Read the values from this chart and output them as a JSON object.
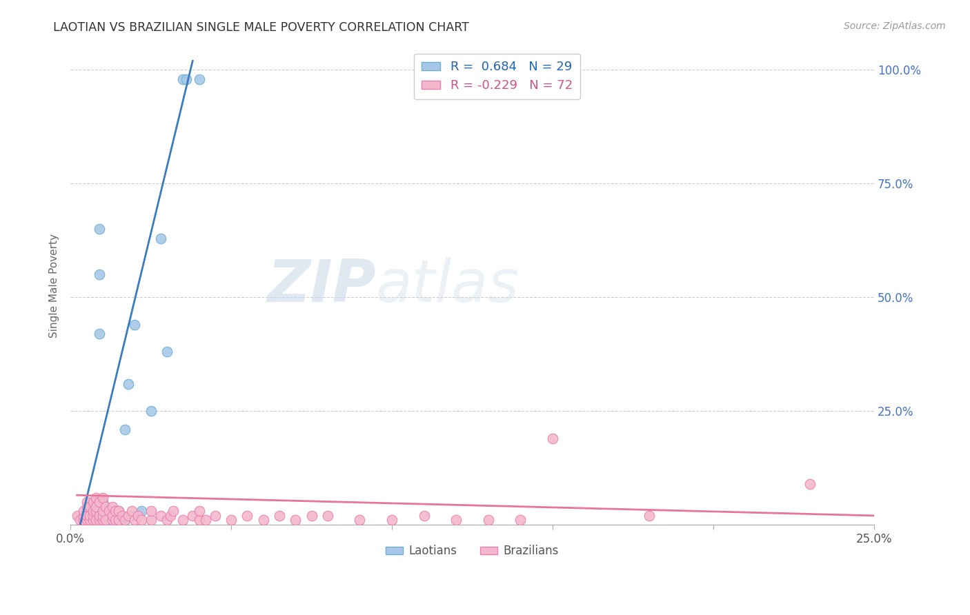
{
  "title": "LAOTIAN VS BRAZILIAN SINGLE MALE POVERTY CORRELATION CHART",
  "source": "Source: ZipAtlas.com",
  "ylabel": "Single Male Poverty",
  "right_yticks": [
    "100.0%",
    "75.0%",
    "50.0%",
    "25.0%"
  ],
  "right_ytick_vals": [
    1.0,
    0.75,
    0.5,
    0.25
  ],
  "xlim": [
    0.0,
    0.25
  ],
  "ylim": [
    0.0,
    1.05
  ],
  "laotian_color": "#a8c8e8",
  "laotian_edge": "#6baed6",
  "brazilian_color": "#f4b8cc",
  "brazilian_edge": "#e87fb0",
  "laotian_line_color": "#3a7abf",
  "brazilian_line_color": "#e8759a",
  "R_laotian": 0.684,
  "N_laotian": 29,
  "R_brazilian": -0.229,
  "N_brazilian": 72,
  "background_color": "#ffffff",
  "grid_color": "#cccccc",
  "laotian_x": [
    0.005,
    0.007,
    0.007,
    0.01,
    0.01,
    0.01,
    0.01,
    0.01,
    0.012,
    0.012,
    0.014,
    0.015,
    0.015,
    0.017,
    0.017,
    0.018,
    0.019,
    0.02,
    0.021,
    0.022,
    0.025,
    0.028,
    0.03,
    0.035,
    0.036,
    0.009,
    0.009,
    0.009,
    0.04
  ],
  "laotian_y": [
    0.01,
    0.01,
    0.02,
    0.01,
    0.02,
    0.03,
    0.04,
    0.05,
    0.01,
    0.02,
    0.01,
    0.02,
    0.03,
    0.01,
    0.21,
    0.31,
    0.02,
    0.44,
    0.02,
    0.03,
    0.25,
    0.63,
    0.38,
    0.98,
    0.98,
    0.65,
    0.55,
    0.42,
    0.98
  ],
  "brazilian_x": [
    0.002,
    0.003,
    0.004,
    0.004,
    0.004,
    0.005,
    0.005,
    0.005,
    0.005,
    0.006,
    0.006,
    0.006,
    0.007,
    0.007,
    0.007,
    0.007,
    0.008,
    0.008,
    0.008,
    0.008,
    0.009,
    0.009,
    0.009,
    0.01,
    0.01,
    0.01,
    0.01,
    0.011,
    0.011,
    0.012,
    0.013,
    0.013,
    0.013,
    0.014,
    0.014,
    0.015,
    0.015,
    0.016,
    0.017,
    0.018,
    0.019,
    0.02,
    0.021,
    0.022,
    0.025,
    0.025,
    0.028,
    0.03,
    0.031,
    0.032,
    0.035,
    0.038,
    0.04,
    0.04,
    0.042,
    0.045,
    0.05,
    0.055,
    0.06,
    0.065,
    0.07,
    0.075,
    0.08,
    0.09,
    0.1,
    0.11,
    0.12,
    0.13,
    0.14,
    0.15,
    0.18,
    0.23
  ],
  "brazilian_y": [
    0.02,
    0.01,
    0.01,
    0.02,
    0.03,
    0.01,
    0.02,
    0.04,
    0.05,
    0.01,
    0.02,
    0.04,
    0.01,
    0.02,
    0.03,
    0.05,
    0.01,
    0.03,
    0.04,
    0.06,
    0.01,
    0.02,
    0.05,
    0.01,
    0.02,
    0.03,
    0.06,
    0.01,
    0.04,
    0.03,
    0.01,
    0.02,
    0.04,
    0.01,
    0.03,
    0.01,
    0.03,
    0.02,
    0.01,
    0.02,
    0.03,
    0.01,
    0.02,
    0.01,
    0.01,
    0.03,
    0.02,
    0.01,
    0.02,
    0.03,
    0.01,
    0.02,
    0.01,
    0.03,
    0.01,
    0.02,
    0.01,
    0.02,
    0.01,
    0.02,
    0.01,
    0.02,
    0.02,
    0.01,
    0.01,
    0.02,
    0.01,
    0.01,
    0.01,
    0.19,
    0.02,
    0.09
  ],
  "lao_line_x": [
    0.003,
    0.038
  ],
  "lao_line_y": [
    0.0,
    1.02
  ],
  "bra_line_x": [
    0.002,
    0.25
  ],
  "bra_line_y": [
    0.065,
    0.02
  ]
}
